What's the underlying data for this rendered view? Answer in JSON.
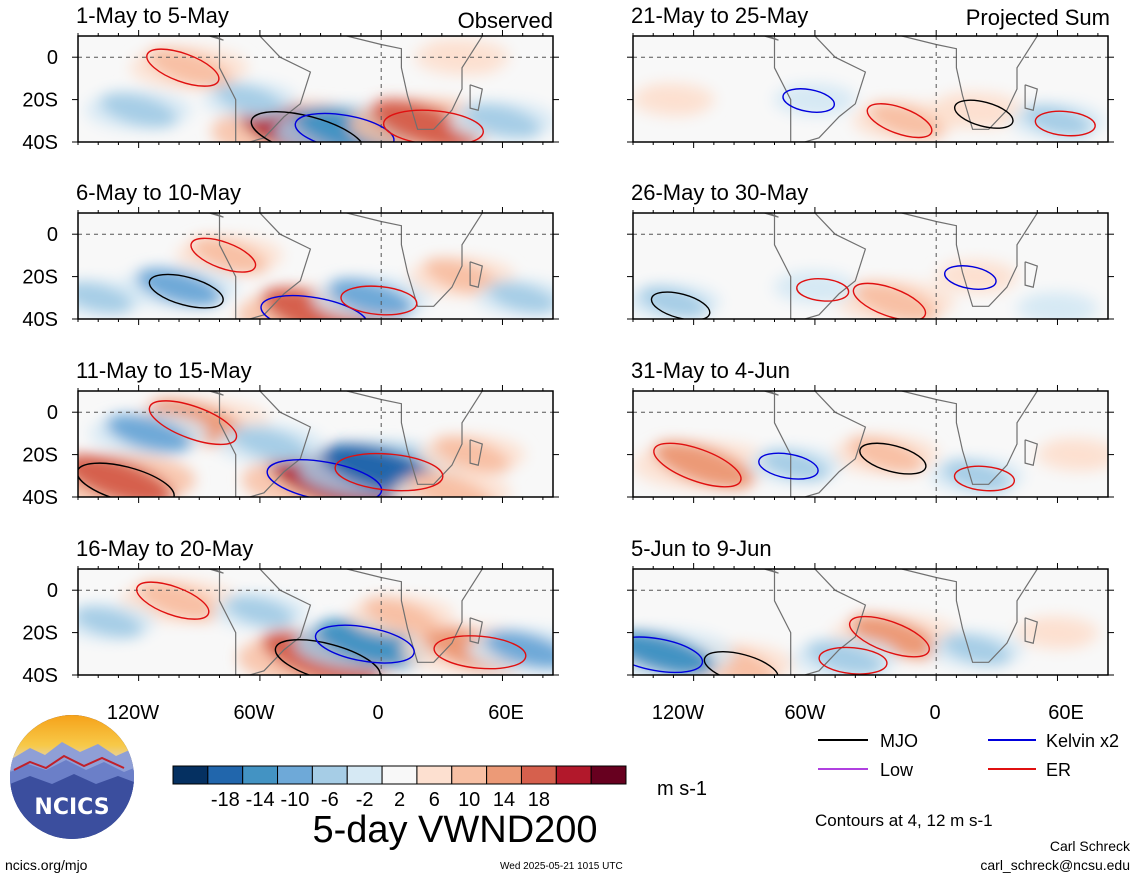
{
  "chart_data": {
    "type": "heatmap",
    "variable": "5-day VWND200",
    "units": "m s-1",
    "contour_note": "Contours at 4, 12 m s-1",
    "column_headers": [
      "Observed",
      "Projected Sum"
    ],
    "colorbar": {
      "colors": [
        "#053061",
        "#2166ac",
        "#4393c3",
        "#6ea9d8",
        "#a6cde6",
        "#d6e9f4",
        "#f8f8f8",
        "#fde0d0",
        "#f8c0a4",
        "#ec9a77",
        "#d6604d",
        "#b2182b",
        "#67001f"
      ],
      "tick_labels": [
        "-18",
        "-14",
        "-10",
        "-6",
        "-2",
        "2",
        "6",
        "10",
        "14",
        "18"
      ]
    },
    "x_axis": {
      "ticks": [
        "120W",
        "60W",
        "0",
        "60E"
      ],
      "range_deg": [
        -150,
        85
      ]
    },
    "y_axis": {
      "ticks": [
        "0",
        "20S",
        "40S"
      ],
      "range_deg": [
        10,
        -40
      ]
    },
    "legend": [
      {
        "label": "MJO",
        "color": "#000000"
      },
      {
        "label": "Kelvin x2",
        "color": "#0000dd"
      },
      {
        "label": "Low",
        "color": "#b040e0"
      },
      {
        "label": "ER",
        "color": "#e01010"
      }
    ],
    "panels": [
      {
        "title": "1-May to 5-May",
        "column": "Observed",
        "anomalies": [
          {
            "lon": -95,
            "lat": -5,
            "value": 10
          },
          {
            "lon": -40,
            "lat": -35,
            "value": 20
          },
          {
            "lon": -15,
            "lat": -35,
            "value": -16
          },
          {
            "lon": 22,
            "lat": -32,
            "value": 16
          },
          {
            "lon": -120,
            "lat": -25,
            "value": -8
          },
          {
            "lon": 40,
            "lat": 0,
            "value": 6
          },
          {
            "lon": -65,
            "lat": -20,
            "value": -6
          },
          {
            "lon": 60,
            "lat": -30,
            "value": -8
          }
        ]
      },
      {
        "title": "6-May to 10-May",
        "column": "Observed",
        "anomalies": [
          {
            "lon": -75,
            "lat": -10,
            "value": 8
          },
          {
            "lon": -100,
            "lat": -25,
            "value": -10
          },
          {
            "lon": -30,
            "lat": -38,
            "value": 18
          },
          {
            "lon": -5,
            "lat": -30,
            "value": -10
          },
          {
            "lon": 40,
            "lat": -20,
            "value": 8
          },
          {
            "lon": -140,
            "lat": -30,
            "value": -6
          },
          {
            "lon": 70,
            "lat": -30,
            "value": -6
          }
        ]
      },
      {
        "title": "11-May to 15-May",
        "column": "Observed",
        "anomalies": [
          {
            "lon": -90,
            "lat": -5,
            "value": 14
          },
          {
            "lon": -130,
            "lat": -32,
            "value": 16
          },
          {
            "lon": -25,
            "lat": -32,
            "value": 20
          },
          {
            "lon": 0,
            "lat": -27,
            "value": -18
          },
          {
            "lon": -115,
            "lat": -10,
            "value": -10
          },
          {
            "lon": 45,
            "lat": -20,
            "value": 8
          },
          {
            "lon": 35,
            "lat": -38,
            "value": 10
          },
          {
            "lon": -55,
            "lat": -15,
            "value": -8
          }
        ]
      },
      {
        "title": "16-May to 20-May",
        "column": "Observed",
        "anomalies": [
          {
            "lon": -100,
            "lat": -5,
            "value": 10
          },
          {
            "lon": -30,
            "lat": -32,
            "value": 18
          },
          {
            "lon": -5,
            "lat": -25,
            "value": -16
          },
          {
            "lon": 45,
            "lat": -28,
            "value": 14
          },
          {
            "lon": 10,
            "lat": -12,
            "value": 8
          },
          {
            "lon": 72,
            "lat": -28,
            "value": -10
          },
          {
            "lon": -135,
            "lat": -15,
            "value": -6
          },
          {
            "lon": -60,
            "lat": -10,
            "value": -6
          }
        ]
      },
      {
        "title": "21-May to 25-May",
        "column": "Projected Sum",
        "anomalies": [
          {
            "lon": -15,
            "lat": -30,
            "value": 8
          },
          {
            "lon": 20,
            "lat": -25,
            "value": 6
          },
          {
            "lon": -60,
            "lat": -20,
            "value": -4
          },
          {
            "lon": 60,
            "lat": -30,
            "value": -6
          },
          {
            "lon": -130,
            "lat": -20,
            "value": 4
          }
        ]
      },
      {
        "title": "26-May to 30-May",
        "column": "Projected Sum",
        "anomalies": [
          {
            "lon": -20,
            "lat": -32,
            "value": 10
          },
          {
            "lon": -130,
            "lat": -32,
            "value": -6
          },
          {
            "lon": 20,
            "lat": -20,
            "value": 4
          },
          {
            "lon": -60,
            "lat": -25,
            "value": -4
          },
          {
            "lon": 60,
            "lat": -35,
            "value": -4
          }
        ]
      },
      {
        "title": "31-May to 4-Jun",
        "column": "Projected Sum",
        "anomalies": [
          {
            "lon": -115,
            "lat": -25,
            "value": 14
          },
          {
            "lon": -25,
            "lat": -20,
            "value": 8
          },
          {
            "lon": -70,
            "lat": -25,
            "value": -6
          },
          {
            "lon": 20,
            "lat": -30,
            "value": -6
          },
          {
            "lon": 70,
            "lat": -20,
            "value": 4
          }
        ]
      },
      {
        "title": "5-Jun to 9-Jun",
        "column": "Projected Sum",
        "anomalies": [
          {
            "lon": -20,
            "lat": -22,
            "value": 12
          },
          {
            "lon": -100,
            "lat": -35,
            "value": 10
          },
          {
            "lon": -135,
            "lat": -30,
            "value": -14
          },
          {
            "lon": -45,
            "lat": -32,
            "value": -8
          },
          {
            "lon": 20,
            "lat": -28,
            "value": -6
          },
          {
            "lon": 60,
            "lat": -20,
            "value": 4
          }
        ]
      }
    ]
  },
  "logo": {
    "text": "NCICS"
  },
  "footer": {
    "url": "ncics.org/mjo",
    "timestamp": "Wed 2025-05-21 1015 UTC",
    "author": "Carl Schreck",
    "email": "carl_schreck@ncsu.edu"
  }
}
